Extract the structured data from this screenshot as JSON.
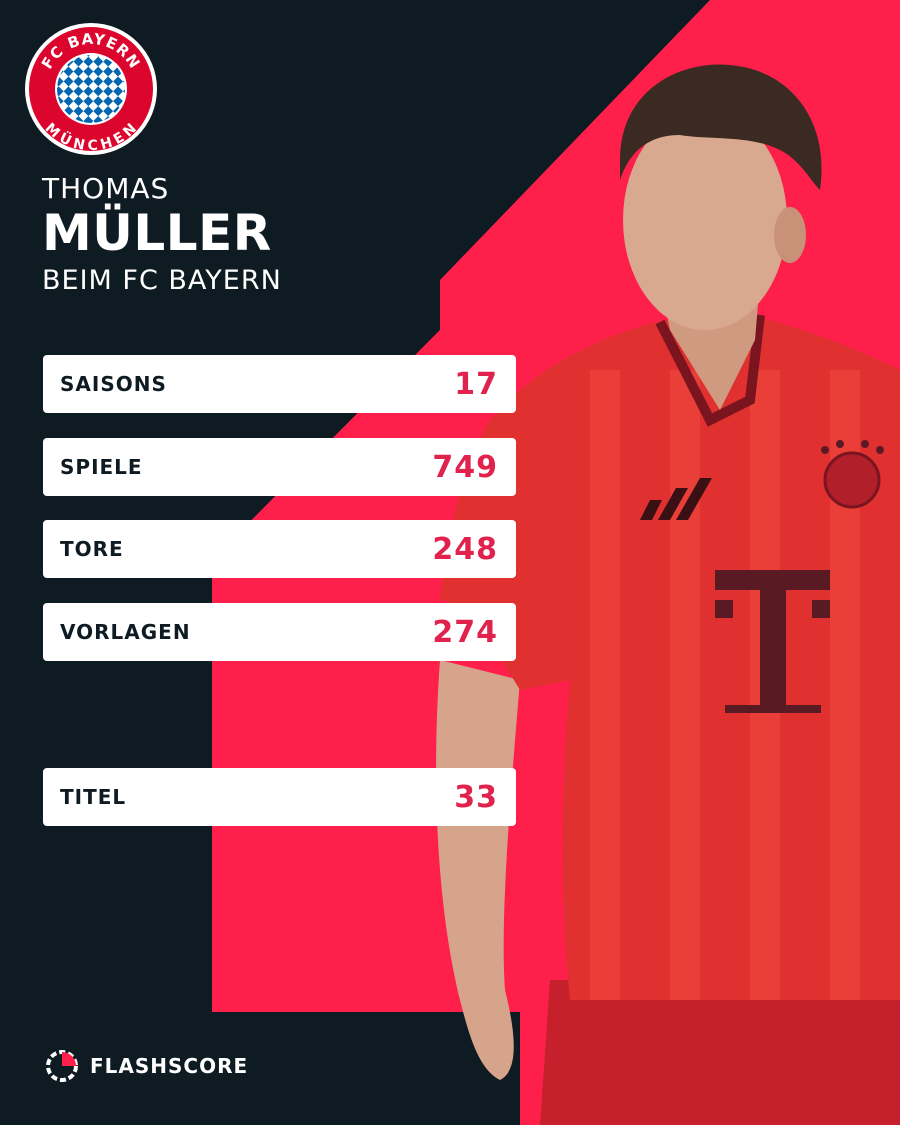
{
  "header": {
    "first_name": "THOMAS",
    "last_name": "MÜLLER",
    "subtitle": "BEIM FC BAYERN"
  },
  "logo": {
    "icon": "fc-bayern-crest-icon",
    "text_top": "FC BAYERN",
    "text_bottom": "MÜNCHEN"
  },
  "stats": [
    {
      "label": "SAISONS",
      "value": "17"
    },
    {
      "label": "SPIELE",
      "value": "749"
    },
    {
      "label": "TORE",
      "value": "248"
    },
    {
      "label": "VORLAGEN",
      "value": "274"
    },
    {
      "label": "TITEL",
      "value": "33"
    }
  ],
  "footer": {
    "brand": "FLASHSCORE",
    "icon": "flashscore-logo-icon"
  },
  "colors": {
    "background": "#0e1b22",
    "accent": "#ff1f4b",
    "value_text": "#e0224d",
    "card": "#ffffff"
  }
}
